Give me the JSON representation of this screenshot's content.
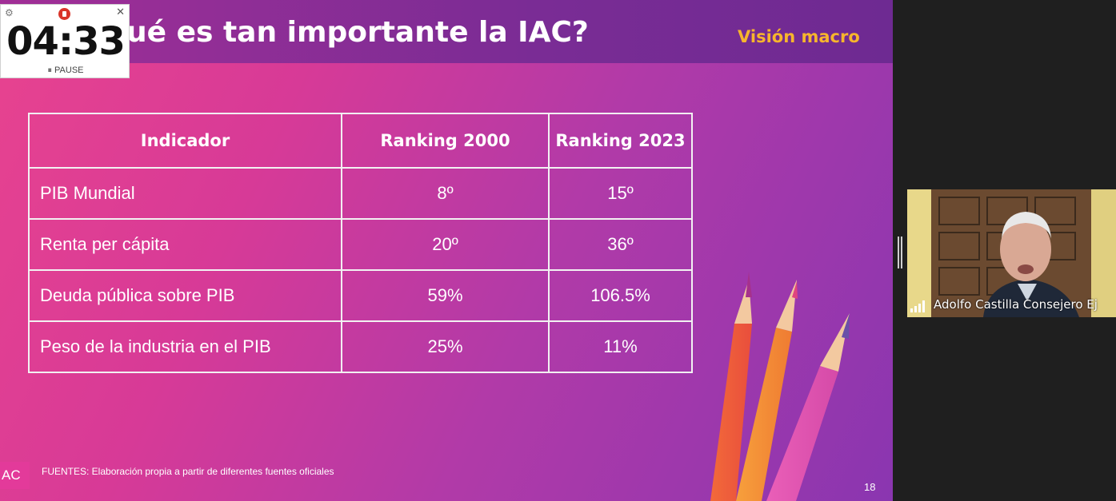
{
  "slide": {
    "title": "ué es tan importante la IAC?",
    "tag": "Visión macro",
    "table": {
      "headers": [
        "Indicador",
        "Ranking 2000",
        "Ranking 2023"
      ],
      "rows": [
        [
          "PIB Mundial",
          "8º",
          "15º"
        ],
        [
          "Renta per cápita",
          "20º",
          "36º"
        ],
        [
          "Deuda pública sobre PIB",
          "59%",
          "106.5%"
        ],
        [
          "Peso de la industria en el PIB",
          "25%",
          "11%"
        ]
      ]
    },
    "logo_text": "AC",
    "source_note": "FUENTES: Elaboración propia a partir de diferentes fuentes oficiales",
    "page_number": "18"
  },
  "timer": {
    "time": "04:33",
    "pause_label": "⏸ PAUSE",
    "settings_icon": "gear-icon",
    "close_label": "✕"
  },
  "participant": {
    "name": "Adolfo Castilla Consejero Ej"
  },
  "colors": {
    "accent_tag": "#f7b52c",
    "slide_pink": "#e8438f",
    "slide_purple": "#8a36b0"
  }
}
